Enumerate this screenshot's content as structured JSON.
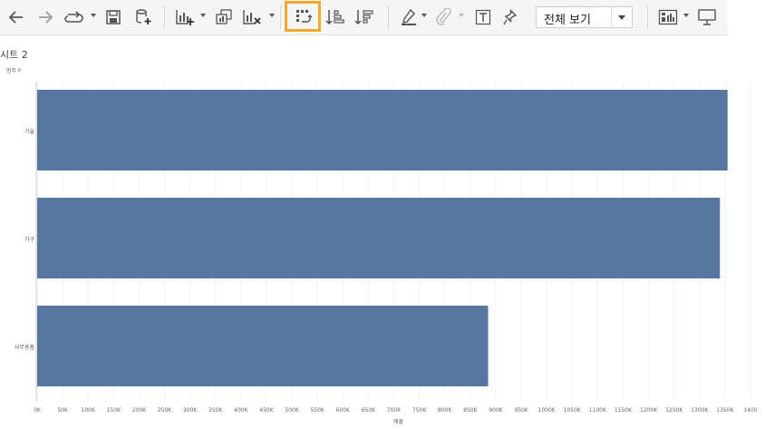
{
  "toolbar": {
    "items": [
      {
        "name": "back-arrow-icon"
      },
      {
        "name": "forward-arrow-icon"
      },
      {
        "name": "redo-icon"
      },
      {
        "name": "save-icon"
      },
      {
        "name": "new-data-source-icon"
      },
      {
        "name": "new-worksheet-icon"
      },
      {
        "name": "duplicate-sheet-icon"
      },
      {
        "name": "clear-sheet-icon"
      },
      {
        "name": "swap-rows-columns-icon"
      },
      {
        "name": "sort-ascending-icon"
      },
      {
        "name": "sort-descending-icon"
      },
      {
        "name": "highlight-icon"
      },
      {
        "name": "group-members-icon"
      },
      {
        "name": "show-mark-labels-icon"
      },
      {
        "name": "fix-axes-icon"
      },
      {
        "name": "show-me-icon"
      },
      {
        "name": "presentation-mode-icon"
      }
    ],
    "view_select": "전체 보기",
    "highlight_color": "#f0a92a"
  },
  "sheet_title": "시트 2",
  "chart_data": {
    "type": "bar",
    "orientation": "horizontal",
    "y_title": "범주 F",
    "x_title": "매출",
    "categories": [
      "기술",
      "가구",
      "사무용품"
    ],
    "values": [
      1355000,
      1340000,
      885000
    ],
    "xlim": [
      0,
      1400000
    ],
    "x_ticks": [
      "0K",
      "50K",
      "100K",
      "150K",
      "200K",
      "250K",
      "300K",
      "350K",
      "400K",
      "450K",
      "500K",
      "550K",
      "600K",
      "650K",
      "700K",
      "750K",
      "800K",
      "850K",
      "900K",
      "950K",
      "1000K",
      "1050K",
      "1100K",
      "1150K",
      "1200K",
      "1250K",
      "1300K",
      "1350K",
      "1400"
    ],
    "bar_color": "#5877a0",
    "grid": true
  }
}
